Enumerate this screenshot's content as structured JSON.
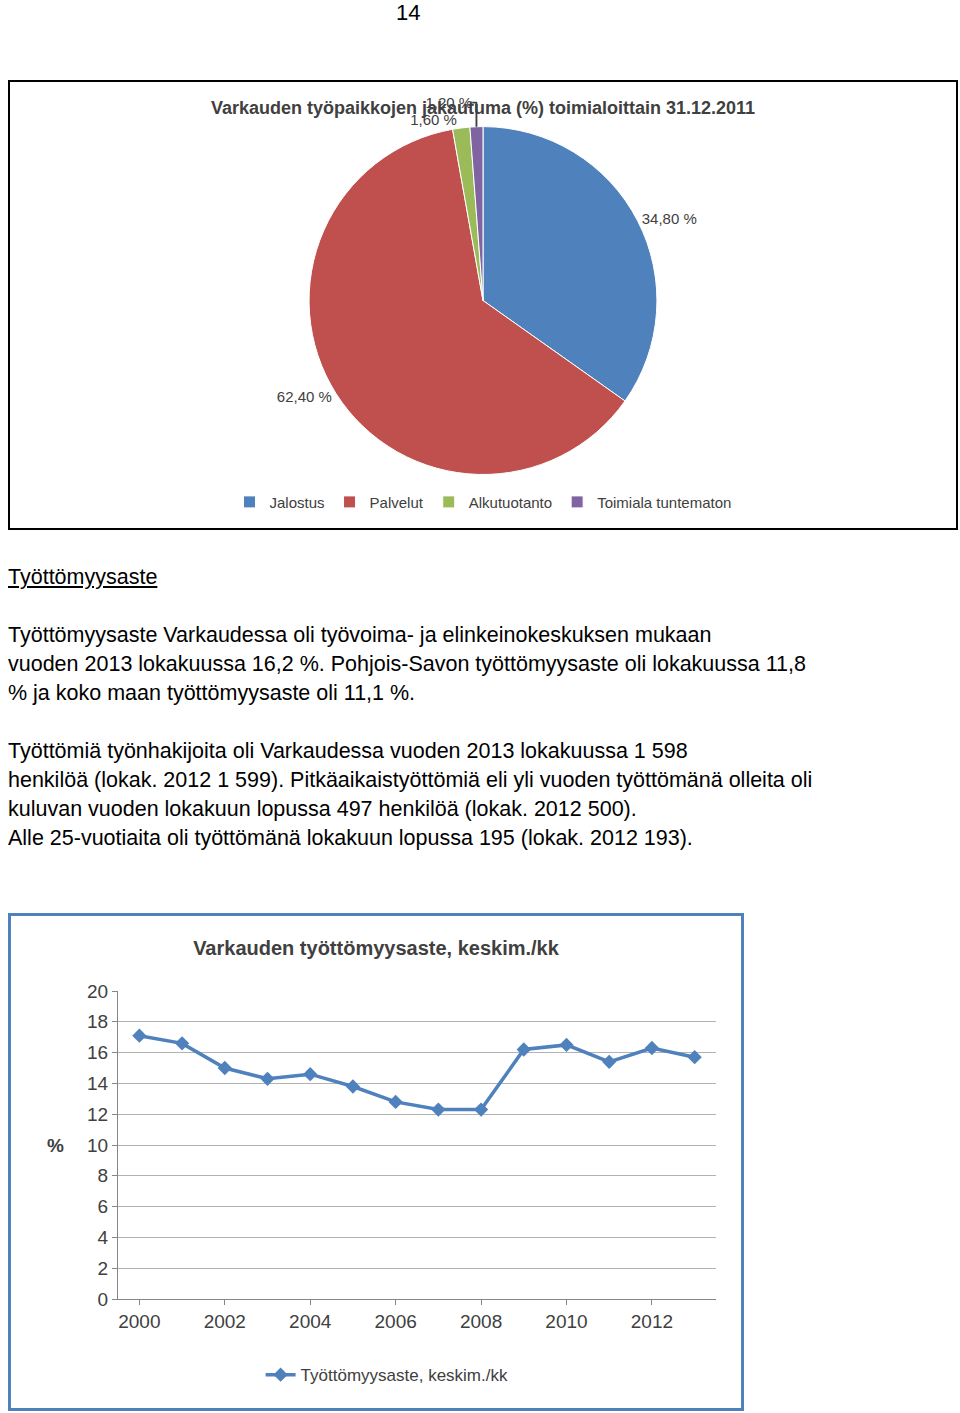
{
  "page_number": "14",
  "chart_data": [
    {
      "type": "pie",
      "title": "Varkauden työpaikkojen jakautuma (%) toimialoittain 31.12.2011",
      "categories": [
        "Jalostus",
        "Palvelut",
        "Alkutuotanto",
        "Toimiala tuntematon"
      ],
      "values": [
        34.8,
        62.4,
        1.6,
        1.2
      ],
      "value_labels": [
        "34,80 %",
        "62,40 %",
        "1,60 %",
        "1,20 %"
      ],
      "colors": [
        "#4f81bd",
        "#c0504d",
        "#9bbb59",
        "#8064a2"
      ],
      "data_labels": true,
      "legend": "bottom"
    },
    {
      "type": "line",
      "title": "Varkauden työttömyysaste, keskim./kk",
      "ylabel": "%",
      "x": [
        2000,
        2001,
        2002,
        2003,
        2004,
        2005,
        2006,
        2007,
        2008,
        2009,
        2010,
        2011,
        2012,
        2013
      ],
      "series": [
        {
          "name": "Työttömyysaste, keskim./kk",
          "color": "#4f81bd",
          "marker": "diamond",
          "values": [
            17.1,
            16.6,
            15.0,
            14.3,
            14.6,
            13.8,
            12.8,
            12.3,
            12.3,
            16.2,
            16.5,
            15.4,
            16.3,
            15.7
          ]
        }
      ],
      "xlim": [
        1999.5,
        2013.5
      ],
      "xticks": [
        2000,
        2002,
        2004,
        2006,
        2008,
        2010,
        2012
      ],
      "ylim": [
        0,
        20
      ],
      "yticks": [
        0,
        2,
        4,
        6,
        8,
        10,
        12,
        14,
        16,
        18,
        20
      ],
      "grid": true,
      "legend": "bottom"
    }
  ],
  "section": {
    "heading": "Työttömyysaste",
    "paragraphs": [
      [
        "Työttömyysaste Varkaudessa oli työvoima- ja elinkeinokeskuksen mukaan",
        "vuoden 2013 lokakuussa 16,2 %. Pohjois-Savon työttömyysaste oli lokakuussa 11,8",
        "% ja koko maan työttömyysaste oli 11,1 %."
      ],
      [
        "Työttömiä työnhakijoita oli Varkaudessa vuoden 2013 lokakuussa 1 598",
        "henkilöä (lokak. 2012 1 599). Pitkäaikaistyöttömiä eli yli vuoden työttömänä olleita oli",
        "kuluvan vuoden lokakuun lopussa 497 henkilöä (lokak. 2012 500).",
        "Alle 25-vuotiaita oli työttömänä lokakuun lopussa 195 (lokak. 2012 193)."
      ]
    ]
  }
}
